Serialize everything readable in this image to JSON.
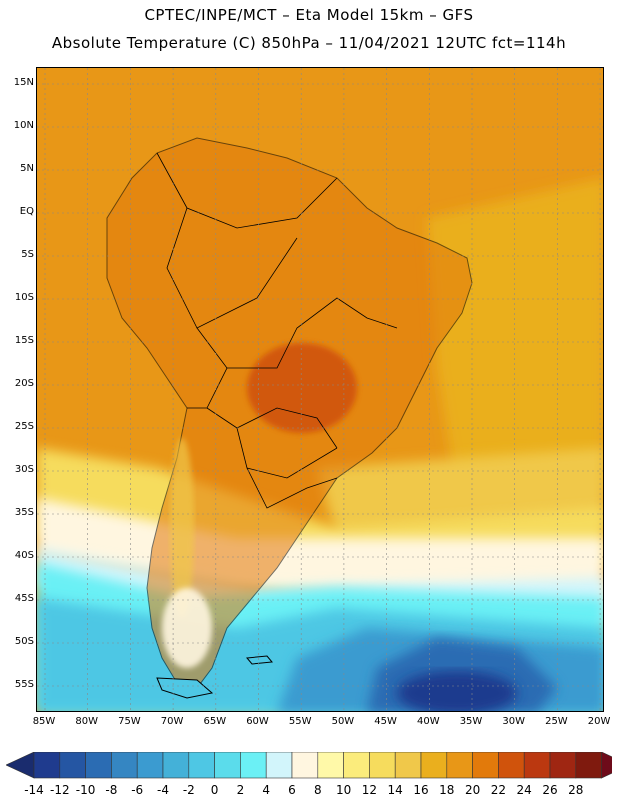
{
  "header": {
    "line1": "CPTEC/INPE/MCT –  Eta Model 15km – GFS",
    "line2": "Absolute Temperature (C) 850hPa – 11/04/2021 12UTC fct=114h"
  },
  "map": {
    "lat_labels": [
      "15N",
      "10N",
      "5N",
      "EQ",
      "5S",
      "10S",
      "15S",
      "20S",
      "25S",
      "30S",
      "35S",
      "40S",
      "45S",
      "50S",
      "55S"
    ],
    "lon_labels": [
      "85W",
      "80W",
      "75W",
      "70W",
      "65W",
      "60W",
      "55W",
      "50W",
      "45W",
      "40W",
      "35W",
      "30W",
      "25W",
      "20W"
    ],
    "regions": [
      "south-america-continent",
      "brazil-interior-warm-core",
      "southern-ocean-cold-pool",
      "tierra-del-fuego"
    ]
  },
  "legend": {
    "values": [
      "-14",
      "-12",
      "-10",
      "-8",
      "-6",
      "-4",
      "-2",
      "0",
      "2",
      "4",
      "6",
      "8",
      "10",
      "12",
      "14",
      "16",
      "18",
      "20",
      "22",
      "24",
      "26",
      "28"
    ],
    "colors": [
      "#1f3b8e",
      "#2556a3",
      "#2b6cb3",
      "#3586c2",
      "#3b9bd0",
      "#44b1d8",
      "#4ec7e4",
      "#5bdceb",
      "#6bf0f5",
      "#d2f5fb",
      "#fff6e0",
      "#fff9a8",
      "#fbec7c",
      "#f6dc5d",
      "#f0c84a",
      "#eaaf1e",
      "#e89717",
      "#e27a0b",
      "#d0530c",
      "#bb3810",
      "#9f2612",
      "#7f1a0e"
    ],
    "low_arrow_color": "#1a2c6e",
    "high_arrow_color": "#6e0b1a"
  }
}
